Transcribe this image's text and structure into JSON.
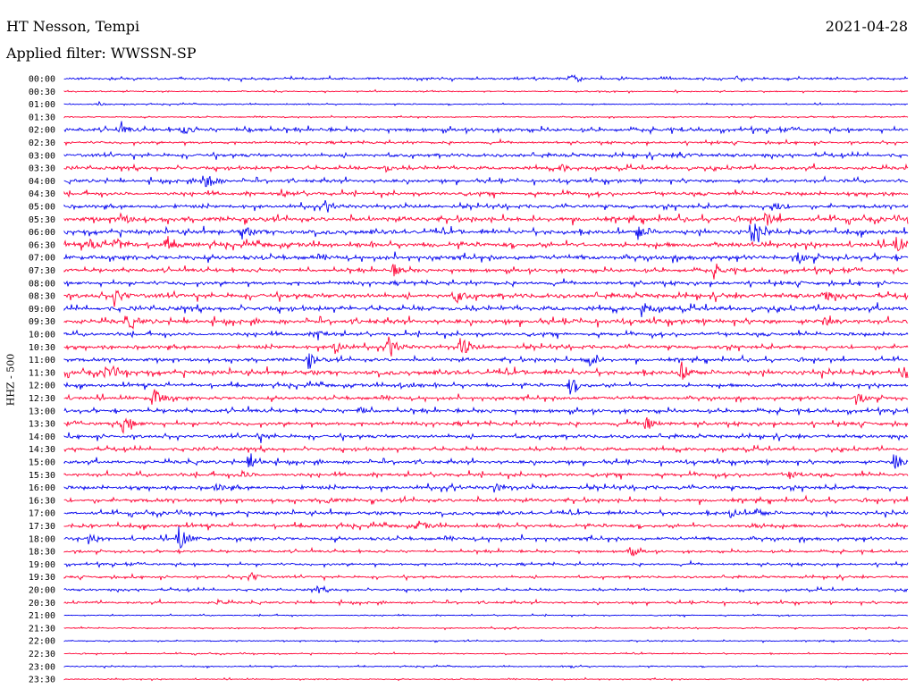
{
  "header": {
    "station": "HT Nesson, Tempi",
    "date": "2021-04-28",
    "filter": "Applied filter: WWSSN-SP"
  },
  "colors": {
    "even_hour": "#0000ee",
    "half_hour": "#ff0033"
  },
  "chart_data": {
    "type": "line",
    "title": "HT Nesson, Tempi",
    "subtitle": "Applied filter: WWSSN-SP",
    "ylabel": "HHZ - 500",
    "xlabel": "",
    "grid": false,
    "categories": [
      "00:00",
      "00:30",
      "01:00",
      "01:30",
      "02:00",
      "02:30",
      "03:00",
      "03:30",
      "04:00",
      "04:30",
      "05:00",
      "05:30",
      "06:00",
      "06:30",
      "07:00",
      "07:30",
      "08:00",
      "08:30",
      "09:00",
      "09:30",
      "10:00",
      "10:30",
      "11:00",
      "11:30",
      "12:00",
      "12:30",
      "13:00",
      "13:30",
      "14:00",
      "14:30",
      "15:00",
      "15:30",
      "16:00",
      "16:30",
      "17:00",
      "17:30",
      "18:00",
      "18:30",
      "19:00",
      "19:30",
      "20:00",
      "20:30",
      "21:00",
      "21:30",
      "22:00",
      "22:30",
      "23:00",
      "23:30"
    ],
    "series_noise": [
      2,
      1,
      1,
      1,
      3,
      2,
      3,
      3,
      3,
      3,
      3,
      4,
      4,
      4,
      4,
      3,
      3,
      4,
      4,
      4,
      3,
      3,
      3,
      4,
      3,
      3,
      3,
      3,
      3,
      3,
      3,
      3,
      3,
      3,
      3,
      3,
      3,
      2,
      2,
      2,
      2,
      2,
      1,
      1,
      1,
      1,
      1,
      1
    ],
    "events": [
      {
        "row": 0,
        "t": 0.6,
        "a": 5
      },
      {
        "row": 2,
        "t": 0.04,
        "a": 2
      },
      {
        "row": 4,
        "t": 0.065,
        "a": 6
      },
      {
        "row": 4,
        "t": 0.14,
        "a": 5
      },
      {
        "row": 4,
        "t": 0.22,
        "a": 3
      },
      {
        "row": 6,
        "t": 0.73,
        "a": 4
      },
      {
        "row": 7,
        "t": 0.38,
        "a": 4
      },
      {
        "row": 7,
        "t": 0.59,
        "a": 4
      },
      {
        "row": 8,
        "t": 0.165,
        "a": 14
      },
      {
        "row": 9,
        "t": 0.26,
        "a": 4
      },
      {
        "row": 10,
        "t": 0.31,
        "a": 4
      },
      {
        "row": 10,
        "t": 0.84,
        "a": 7
      },
      {
        "row": 11,
        "t": 0.065,
        "a": 7
      },
      {
        "row": 11,
        "t": 0.83,
        "a": 8
      },
      {
        "row": 12,
        "t": 0.21,
        "a": 7
      },
      {
        "row": 12,
        "t": 0.68,
        "a": 10
      },
      {
        "row": 12,
        "t": 0.815,
        "a": 14
      },
      {
        "row": 13,
        "t": 0.03,
        "a": 7
      },
      {
        "row": 13,
        "t": 0.06,
        "a": 8
      },
      {
        "row": 13,
        "t": 0.12,
        "a": 6
      },
      {
        "row": 13,
        "t": 0.985,
        "a": 9
      },
      {
        "row": 14,
        "t": 0.87,
        "a": 6
      },
      {
        "row": 15,
        "t": 0.39,
        "a": 6
      },
      {
        "row": 15,
        "t": 0.77,
        "a": 7
      },
      {
        "row": 17,
        "t": 0.06,
        "a": 9
      },
      {
        "row": 17,
        "t": 0.465,
        "a": 7
      },
      {
        "row": 17,
        "t": 0.9,
        "a": 6
      },
      {
        "row": 18,
        "t": 0.685,
        "a": 10
      },
      {
        "row": 19,
        "t": 0.075,
        "a": 8
      },
      {
        "row": 19,
        "t": 0.9,
        "a": 5
      },
      {
        "row": 20,
        "t": 0.3,
        "a": 6
      },
      {
        "row": 21,
        "t": 0.32,
        "a": 8
      },
      {
        "row": 21,
        "t": 0.385,
        "a": 10
      },
      {
        "row": 21,
        "t": 0.47,
        "a": 12
      },
      {
        "row": 22,
        "t": 0.29,
        "a": 8
      },
      {
        "row": 22,
        "t": 0.62,
        "a": 10
      },
      {
        "row": 23,
        "t": 0.05,
        "a": 8
      },
      {
        "row": 23,
        "t": 0.73,
        "a": 12
      },
      {
        "row": 23,
        "t": 0.995,
        "a": 10
      },
      {
        "row": 24,
        "t": 0.4,
        "a": 5
      },
      {
        "row": 24,
        "t": 0.6,
        "a": 10
      },
      {
        "row": 25,
        "t": 0.105,
        "a": 14
      },
      {
        "row": 25,
        "t": 0.94,
        "a": 7
      },
      {
        "row": 26,
        "t": 0.35,
        "a": 4
      },
      {
        "row": 27,
        "t": 0.07,
        "a": 10
      },
      {
        "row": 27,
        "t": 0.69,
        "a": 8
      },
      {
        "row": 28,
        "t": 0.23,
        "a": 4
      },
      {
        "row": 30,
        "t": 0.22,
        "a": 12
      },
      {
        "row": 30,
        "t": 0.985,
        "a": 11
      },
      {
        "row": 31,
        "t": 0.21,
        "a": 4
      },
      {
        "row": 31,
        "t": 0.86,
        "a": 5
      },
      {
        "row": 32,
        "t": 0.18,
        "a": 4
      },
      {
        "row": 32,
        "t": 0.51,
        "a": 5
      },
      {
        "row": 33,
        "t": 0.31,
        "a": 3
      },
      {
        "row": 34,
        "t": 0.79,
        "a": 5
      },
      {
        "row": 34,
        "t": 0.82,
        "a": 6
      },
      {
        "row": 35,
        "t": 0.42,
        "a": 5
      },
      {
        "row": 35,
        "t": 0.82,
        "a": 4
      },
      {
        "row": 36,
        "t": 0.135,
        "a": 14
      },
      {
        "row": 36,
        "t": 0.03,
        "a": 4
      },
      {
        "row": 37,
        "t": 0.67,
        "a": 5
      },
      {
        "row": 39,
        "t": 0.22,
        "a": 6
      },
      {
        "row": 40,
        "t": 0.3,
        "a": 4
      },
      {
        "row": 41,
        "t": 0.18,
        "a": 3
      },
      {
        "row": 46,
        "t": 0.6,
        "a": 2
      }
    ]
  }
}
